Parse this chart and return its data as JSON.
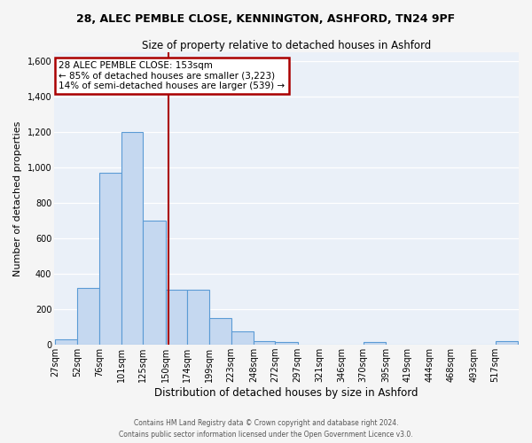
{
  "title": "28, ALEC PEMBLE CLOSE, KENNINGTON, ASHFORD, TN24 9PF",
  "subtitle": "Size of property relative to detached houses in Ashford",
  "xlabel": "Distribution of detached houses by size in Ashford",
  "ylabel": "Number of detached properties",
  "bar_color": "#c5d8f0",
  "bar_edge_color": "#5b9bd5",
  "bg_color": "#eaf0f8",
  "grid_color": "#ffffff",
  "vline_x": 153,
  "vline_color": "#aa0000",
  "annotation_lines": [
    "28 ALEC PEMBLE CLOSE: 153sqm",
    "← 85% of detached houses are smaller (3,223)",
    "14% of semi-detached houses are larger (539) →"
  ],
  "annotation_box_edge": "#aa0000",
  "bins": [
    27,
    52,
    76,
    101,
    125,
    150,
    174,
    199,
    223,
    248,
    272,
    297,
    321,
    346,
    370,
    395,
    419,
    444,
    468,
    493,
    517,
    542
  ],
  "counts": [
    30,
    320,
    970,
    1200,
    700,
    310,
    310,
    150,
    75,
    20,
    15,
    0,
    0,
    0,
    15,
    0,
    0,
    0,
    0,
    0,
    20,
    0
  ],
  "footer": "Contains HM Land Registry data © Crown copyright and database right 2024.\nContains public sector information licensed under the Open Government Licence v3.0.",
  "ylim": [
    0,
    1650
  ],
  "yticks": [
    0,
    200,
    400,
    600,
    800,
    1000,
    1200,
    1400,
    1600
  ],
  "tick_labels": [
    "27sqm",
    "52sqm",
    "76sqm",
    "101sqm",
    "125sqm",
    "150sqm",
    "174sqm",
    "199sqm",
    "223sqm",
    "248sqm",
    "272sqm",
    "297sqm",
    "321sqm",
    "346sqm",
    "370sqm",
    "395sqm",
    "419sqm",
    "444sqm",
    "468sqm",
    "493sqm",
    "517sqm"
  ]
}
